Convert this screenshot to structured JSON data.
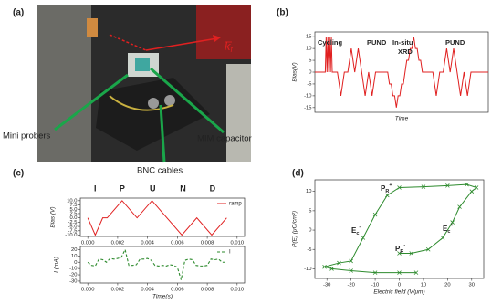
{
  "panel_labels": [
    "(a)",
    "(b)",
    "(c)",
    "(d)"
  ],
  "photo": {
    "labels": [
      "Mini probers",
      "MIM capacitor",
      "BNC cables"
    ],
    "vector": {
      "base": "k",
      "sub": "f"
    }
  },
  "chart_data": [
    {
      "type": "line",
      "ylabel": "Bias(V)",
      "xlabel": "Time",
      "annotations": [
        "Cycling",
        "PUND",
        "In-situ",
        "XRD",
        "PUND"
      ],
      "x": [
        0,
        6,
        6.5,
        7,
        7.5,
        8,
        8.5,
        9,
        9.5,
        10,
        13,
        15,
        17,
        19,
        21,
        23,
        25,
        27,
        29,
        31,
        33,
        35,
        42,
        43,
        44,
        45,
        46,
        47,
        48,
        49,
        50,
        51,
        52,
        53,
        54,
        55,
        56,
        57,
        58,
        59,
        60,
        61,
        62,
        68,
        70,
        72,
        74,
        76,
        78,
        80,
        82,
        84,
        86,
        88,
        90,
        100
      ],
      "series": [
        {
          "color": "#e02020",
          "values": [
            0,
            0,
            15,
            0,
            15,
            0,
            15,
            0,
            15,
            0,
            0,
            -10,
            0,
            0,
            10,
            0,
            10,
            0,
            -10,
            0,
            -10,
            0,
            0,
            -5,
            -5,
            -10,
            -10,
            -15,
            -10,
            -10,
            -5,
            -5,
            0,
            5,
            5,
            10,
            10,
            15,
            10,
            10,
            5,
            5,
            0,
            0,
            -10,
            0,
            0,
            10,
            0,
            10,
            0,
            -10,
            0,
            -10,
            0,
            0
          ]
        }
      ],
      "xlim": [
        0,
        100
      ],
      "ylim": [
        -17,
        17
      ],
      "yticks": [
        15,
        10,
        5,
        0,
        -5,
        -10,
        -15
      ]
    },
    {
      "type": "line",
      "ylabel": "Bias (V)",
      "annotations": [
        "I",
        "P",
        "U",
        "N",
        "D"
      ],
      "legend": "upper right",
      "x": [
        0,
        0.0005,
        0.001,
        0.0013,
        0.0023,
        0.0033,
        0.0043,
        0.0053,
        0.0063,
        0.0073,
        0.0083,
        0.0093
      ],
      "series": [
        {
          "name": "ramp",
          "color": "#e02020",
          "values": [
            0,
            -10,
            0,
            0,
            10,
            0,
            10,
            0,
            -10,
            0,
            -10,
            0
          ]
        }
      ],
      "xlim": [
        -0.0005,
        0.0105
      ],
      "ylim": [
        -10.8,
        11.5
      ],
      "xticks": [
        {
          "value": 0,
          "label": "0.000"
        },
        {
          "value": 0.002,
          "label": "0.002"
        },
        {
          "value": 0.004,
          "label": "0.004"
        },
        {
          "value": 0.006,
          "label": "0.006"
        },
        {
          "value": 0.008,
          "label": "0.008"
        },
        {
          "value": 0.01,
          "label": "0.010"
        }
      ],
      "yticks": [
        {
          "value": 10,
          "label": "10.0"
        },
        {
          "value": 7.5,
          "label": "7.5"
        },
        {
          "value": 5,
          "label": "5.0"
        },
        {
          "value": 2.5,
          "label": "2.5"
        },
        {
          "value": 0,
          "label": "0.0"
        },
        {
          "value": -2.5,
          "label": "-2.5"
        },
        {
          "value": -5,
          "label": "-5.0"
        },
        {
          "value": -7.5,
          "label": "-7.5"
        },
        {
          "value": -10,
          "label": "-10.0"
        }
      ]
    },
    {
      "type": "line",
      "ylabel": "I (mA)",
      "xlabel": "Time(s)",
      "legend": "upper right",
      "x": [
        0,
        0.00025,
        0.0005,
        0.00075,
        0.001,
        0.00125,
        0.0015,
        0.00175,
        0.002,
        0.00225,
        0.0025,
        0.00275,
        0.003,
        0.00325,
        0.0035,
        0.00375,
        0.004,
        0.00425,
        0.0045,
        0.00475,
        0.005,
        0.00525,
        0.0055,
        0.00575,
        0.006,
        0.00625,
        0.0065,
        0.00675,
        0.007,
        0.00725,
        0.0075,
        0.00775,
        0.008,
        0.00825,
        0.0085,
        0.00875,
        0.009,
        0.00925
      ],
      "series": [
        {
          "name": "I",
          "color": "#2e8b2e",
          "dash": true,
          "values": [
            0,
            -5,
            -6,
            5,
            4,
            0,
            6,
            5,
            6,
            8,
            20,
            -5,
            -5,
            -4,
            5,
            5,
            6,
            3,
            -5,
            -6,
            -5,
            -6,
            -4,
            -5,
            -8,
            -28,
            3,
            5,
            4,
            -5,
            -6,
            -6,
            -5,
            5,
            4,
            5,
            0,
            0
          ]
        }
      ],
      "xlim": [
        -0.0005,
        0.0105
      ],
      "ylim": [
        -33,
        25
      ],
      "xticks": [
        {
          "value": 0,
          "label": "0.000"
        },
        {
          "value": 0.002,
          "label": "0.002"
        },
        {
          "value": 0.004,
          "label": "0.004"
        },
        {
          "value": 0.006,
          "label": "0.006"
        },
        {
          "value": 0.008,
          "label": "0.008"
        },
        {
          "value": 0.01,
          "label": "0.010"
        }
      ],
      "yticks": [
        20,
        10,
        0,
        -10,
        -20,
        -30
      ]
    },
    {
      "type": "line",
      "ylabel": "P(E) (μC/cm²)",
      "xlabel": "Electric field (V/μm)",
      "annotations": [
        {
          "base": "P",
          "sub": "R",
          "sup": "+"
        },
        {
          "base": "P",
          "sub": "R",
          "sup": "-"
        },
        {
          "base": "E",
          "sub": "c",
          "sup": "-"
        },
        {
          "base": "E",
          "sub": "c",
          "sup": "+"
        }
      ],
      "x": [
        7,
        0,
        -10,
        -20,
        -28,
        -31,
        -25,
        -20,
        -15,
        -10,
        -5,
        0,
        10,
        20,
        28,
        32,
        30,
        25,
        22,
        18,
        12,
        5,
        0
      ],
      "series": [
        {
          "color": "#2e8b2e",
          "marker": "x",
          "values": [
            -11,
            -11,
            -11,
            -10.5,
            -10,
            -9.5,
            -8.5,
            -8,
            -2,
            4,
            9,
            11,
            11.2,
            11.5,
            11.8,
            11,
            10,
            6,
            2,
            -2,
            -5,
            -6,
            -6
          ]
        }
      ],
      "xlim": [
        -35,
        35
      ],
      "ylim": [
        -12.5,
        13
      ],
      "xticks": [
        -30,
        -20,
        -10,
        0,
        10,
        20,
        30
      ],
      "yticks": [
        10,
        5,
        0,
        -5,
        -10
      ]
    }
  ]
}
